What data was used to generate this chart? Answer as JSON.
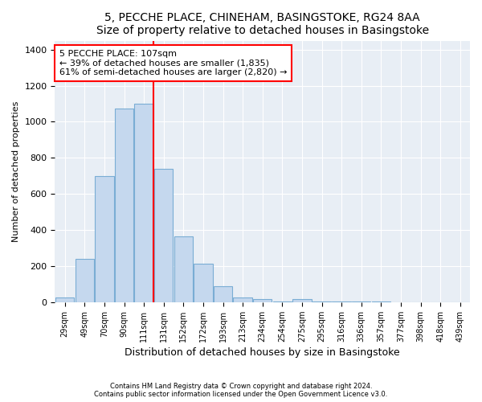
{
  "title": "5, PECCHE PLACE, CHINEHAM, BASINGSTOKE, RG24 8AA",
  "subtitle": "Size of property relative to detached houses in Basingstoke",
  "xlabel": "Distribution of detached houses by size in Basingstoke",
  "ylabel": "Number of detached properties",
  "categories": [
    "29sqm",
    "49sqm",
    "70sqm",
    "90sqm",
    "111sqm",
    "131sqm",
    "152sqm",
    "172sqm",
    "193sqm",
    "213sqm",
    "234sqm",
    "254sqm",
    "275sqm",
    "295sqm",
    "316sqm",
    "336sqm",
    "357sqm",
    "377sqm",
    "398sqm",
    "418sqm",
    "439sqm"
  ],
  "values": [
    25,
    240,
    700,
    1075,
    1100,
    740,
    365,
    215,
    90,
    25,
    15,
    5,
    15,
    3,
    2,
    2,
    2,
    1,
    1,
    1,
    0
  ],
  "bar_color": "#c5d8ee",
  "bar_edgecolor": "#7aadd4",
  "vline_color": "red",
  "annotation_title": "5 PECCHE PLACE: 107sqm",
  "annotation_line1": "← 39% of detached houses are smaller (1,835)",
  "annotation_line2": "61% of semi-detached houses are larger (2,820) →",
  "ylim": [
    0,
    1450
  ],
  "yticks": [
    0,
    200,
    400,
    600,
    800,
    1000,
    1200,
    1400
  ],
  "footnote1": "Contains HM Land Registry data © Crown copyright and database right 2024.",
  "footnote2": "Contains public sector information licensed under the Open Government Licence v3.0.",
  "title_fontsize": 10,
  "bar_width": 0.95,
  "bg_color": "#e8eef5"
}
